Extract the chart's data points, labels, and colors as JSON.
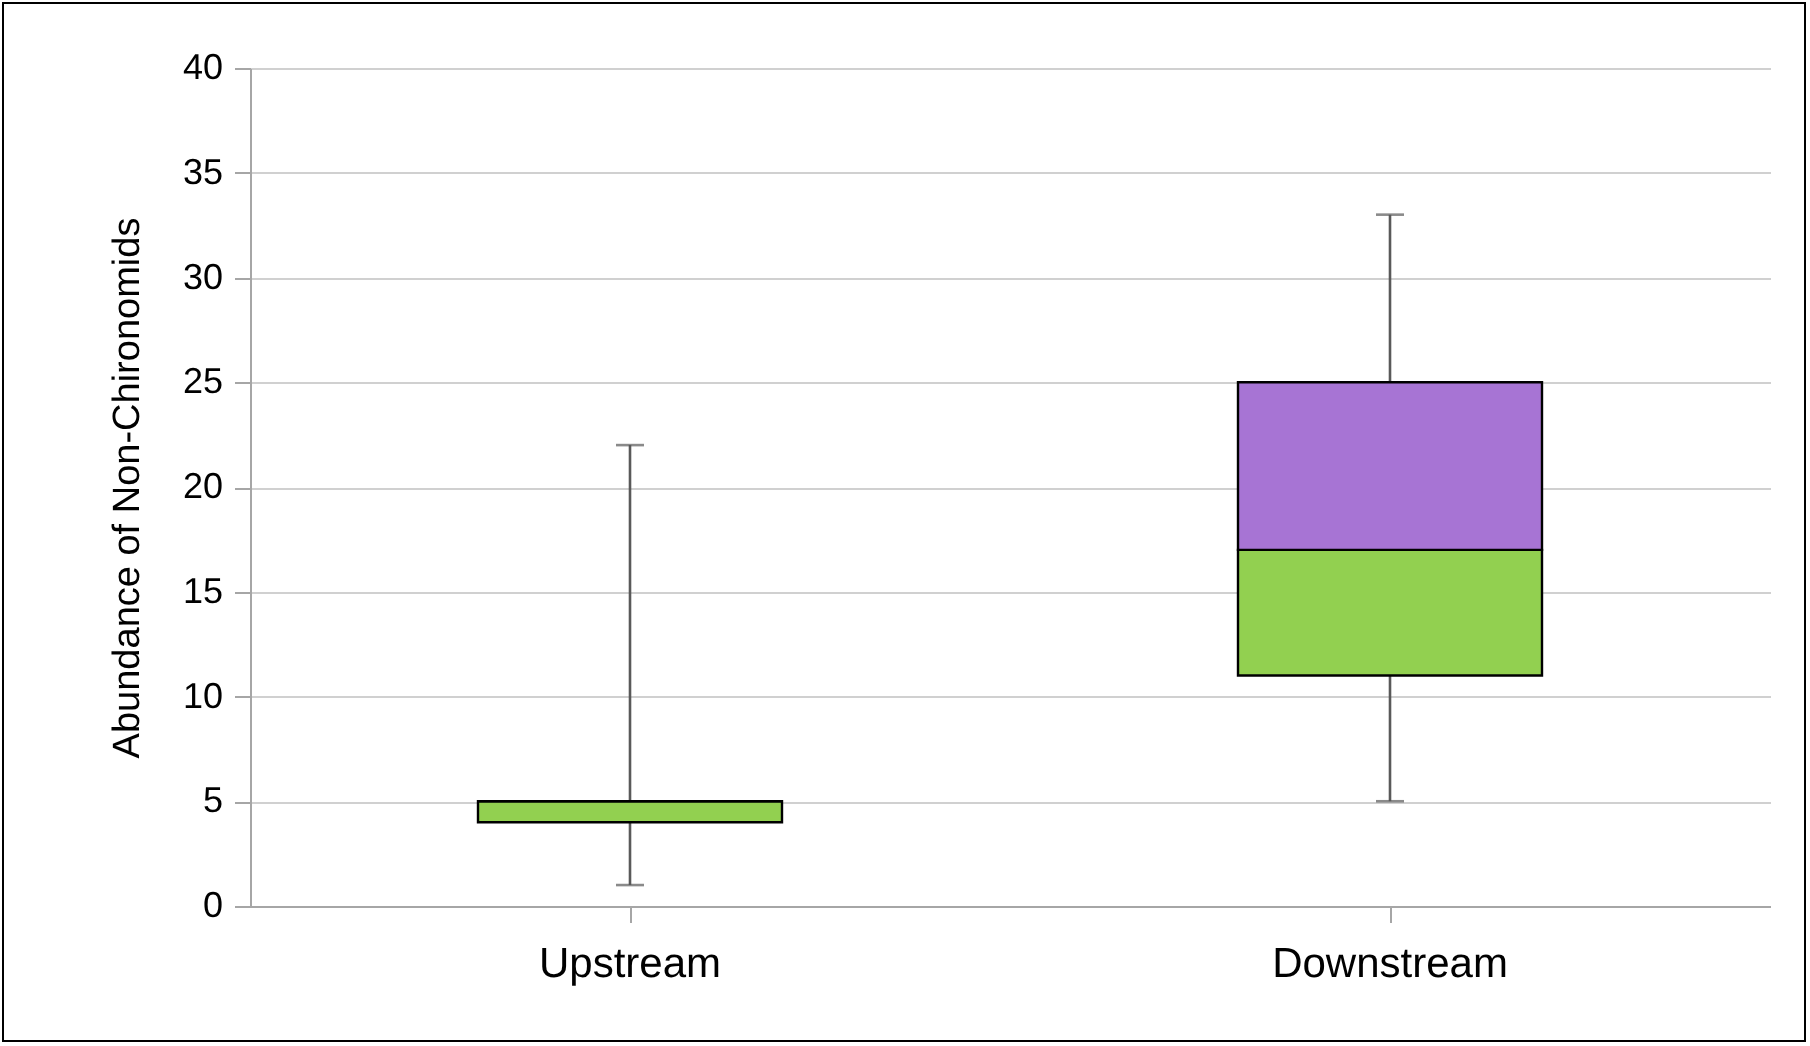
{
  "chart_data": {
    "type": "box",
    "ylabel": "Abundance of Non-Chironomids",
    "categories": [
      "Upstream",
      "Downstream"
    ],
    "boxes": [
      {
        "low": 1,
        "q1": 4,
        "median": 5,
        "q3": 5,
        "high": 22
      },
      {
        "low": 5,
        "q1": 11,
        "median": 17,
        "q3": 25,
        "high": 33
      }
    ],
    "colors": [
      [
        "#92d050",
        "#a774d4"
      ],
      [
        "#92d050",
        "#a774d4"
      ]
    ],
    "ylim": [
      0,
      40
    ],
    "yticks": [
      0,
      5,
      10,
      15,
      20,
      25,
      30,
      35,
      40
    ],
    "grid": "y"
  }
}
